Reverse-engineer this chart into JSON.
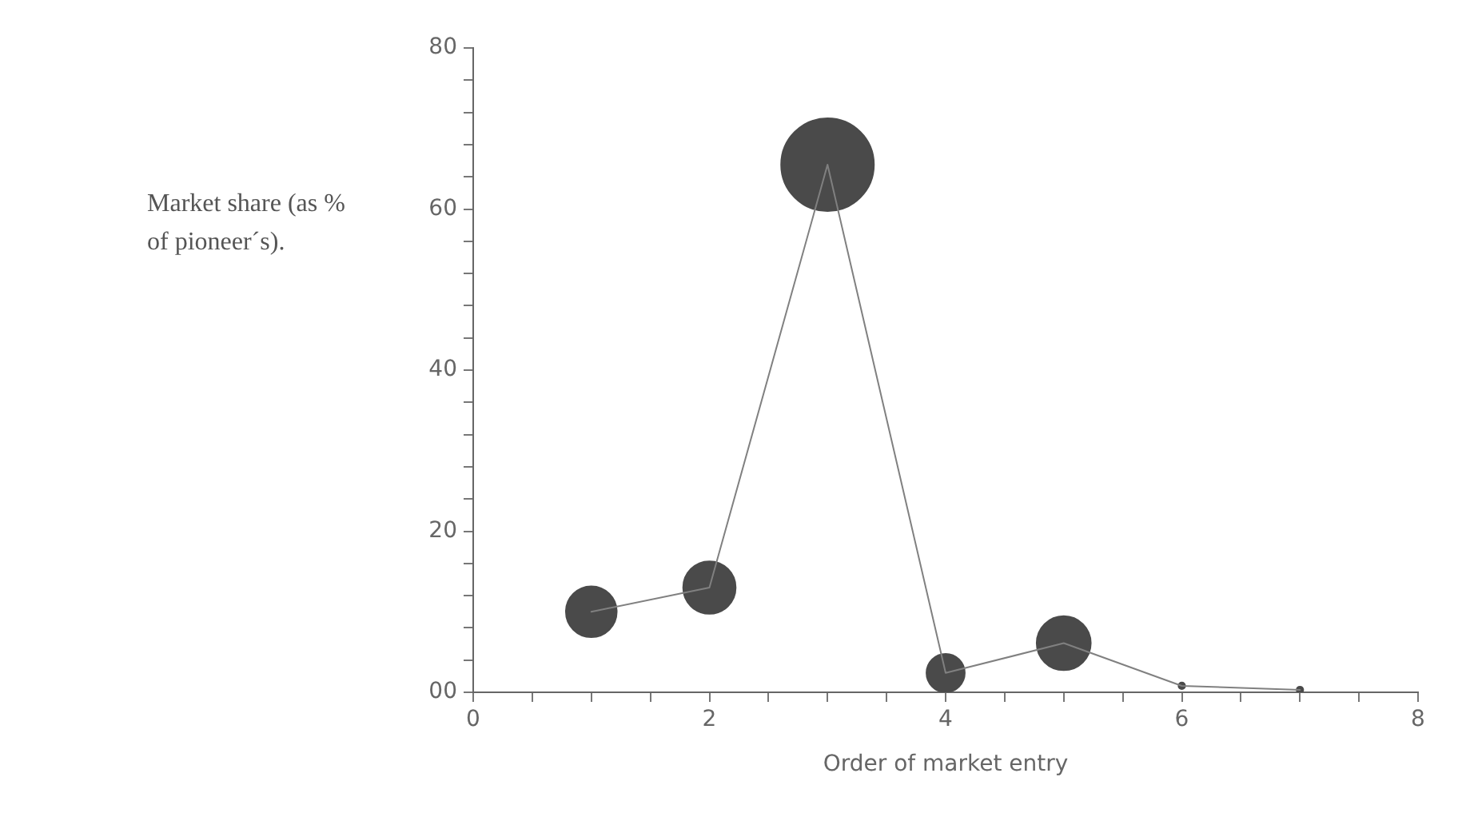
{
  "chart_data": {
    "type": "bubble",
    "xlabel": "Order of market entry",
    "ylabel": "Market share (as % of pioneer´s).",
    "x": [
      1,
      2,
      3,
      4,
      5,
      6,
      7
    ],
    "series": [
      {
        "type": "line",
        "color": "#808080",
        "values": [
          10,
          13,
          65.5,
          2.4,
          6.1,
          0.8,
          0.3
        ]
      },
      {
        "color": "#4a4a4a",
        "values": [
          10,
          13,
          65.5,
          2.4,
          6.1,
          0.8,
          0.3
        ],
        "sizes": [
          0.3,
          0.32,
          1,
          0.17,
          0.34,
          0.005,
          0.005
        ]
      }
    ],
    "xlim": [
      0,
      8
    ],
    "xticks": [
      0,
      {
        "value": 0.5,
        "label": null
      },
      {
        "value": 1,
        "label": null
      },
      {
        "value": 1.5,
        "label": null
      },
      2,
      {
        "value": 2.5,
        "label": null
      },
      {
        "value": 3,
        "label": null
      },
      {
        "value": 3.5,
        "label": null
      },
      4,
      {
        "value": 4.5,
        "label": null
      },
      {
        "value": 5,
        "label": null
      },
      {
        "value": 5.5,
        "label": null
      },
      6,
      {
        "value": 6.5,
        "label": null
      },
      {
        "value": 7,
        "label": null
      },
      {
        "value": 7.5,
        "label": null
      },
      8
    ],
    "ylim": [
      0,
      80
    ],
    "yticks": [
      {
        "value": 0,
        "label": "00"
      },
      {
        "value": 4,
        "label": null
      },
      {
        "value": 8,
        "label": null
      },
      {
        "value": 12,
        "label": null
      },
      {
        "value": 16,
        "label": null
      },
      20,
      {
        "value": 24,
        "label": null
      },
      {
        "value": 28,
        "label": null
      },
      {
        "value": 32,
        "label": null
      },
      {
        "value": 36,
        "label": null
      },
      40,
      {
        "value": 44,
        "label": null
      },
      {
        "value": 48,
        "label": null
      },
      {
        "value": 52,
        "label": null
      },
      {
        "value": 56,
        "label": null
      },
      60,
      {
        "value": 64,
        "label": null
      },
      {
        "value": 68,
        "label": null
      },
      {
        "value": 72,
        "label": null
      },
      {
        "value": 76,
        "label": null
      },
      80
    ],
    "grid": false,
    "legend": false
  }
}
